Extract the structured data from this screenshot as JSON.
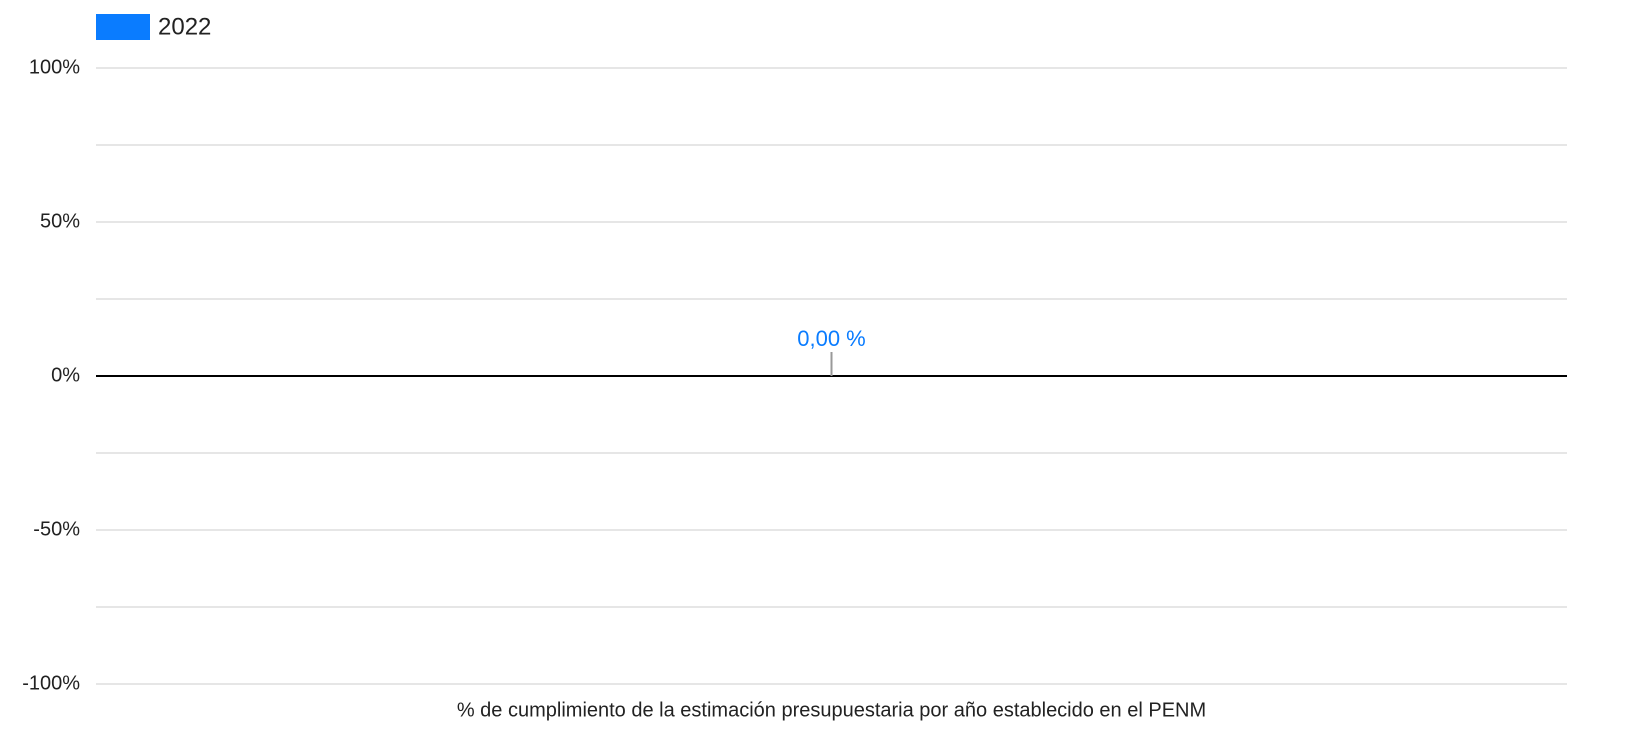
{
  "chart_data": {
    "type": "bar",
    "categories": [
      "% de cumplimiento de la estimación presupuestaria por año establecido en el PENM"
    ],
    "series": [
      {
        "name": "2022",
        "color": "#0a7cff",
        "values": [
          0
        ],
        "value_labels": [
          "0,00 %"
        ]
      }
    ],
    "ylim": [
      -100,
      100
    ],
    "yticks": [
      {
        "value": -100,
        "label": "-100%"
      },
      {
        "value": -50,
        "label": "-50%"
      },
      {
        "value": 0,
        "label": "0%"
      },
      {
        "value": 50,
        "label": "50%"
      },
      {
        "value": 100,
        "label": "100%"
      }
    ],
    "minor_yticks": [
      -75,
      -25,
      25,
      75
    ],
    "grid": true,
    "legend": "top-left"
  }
}
